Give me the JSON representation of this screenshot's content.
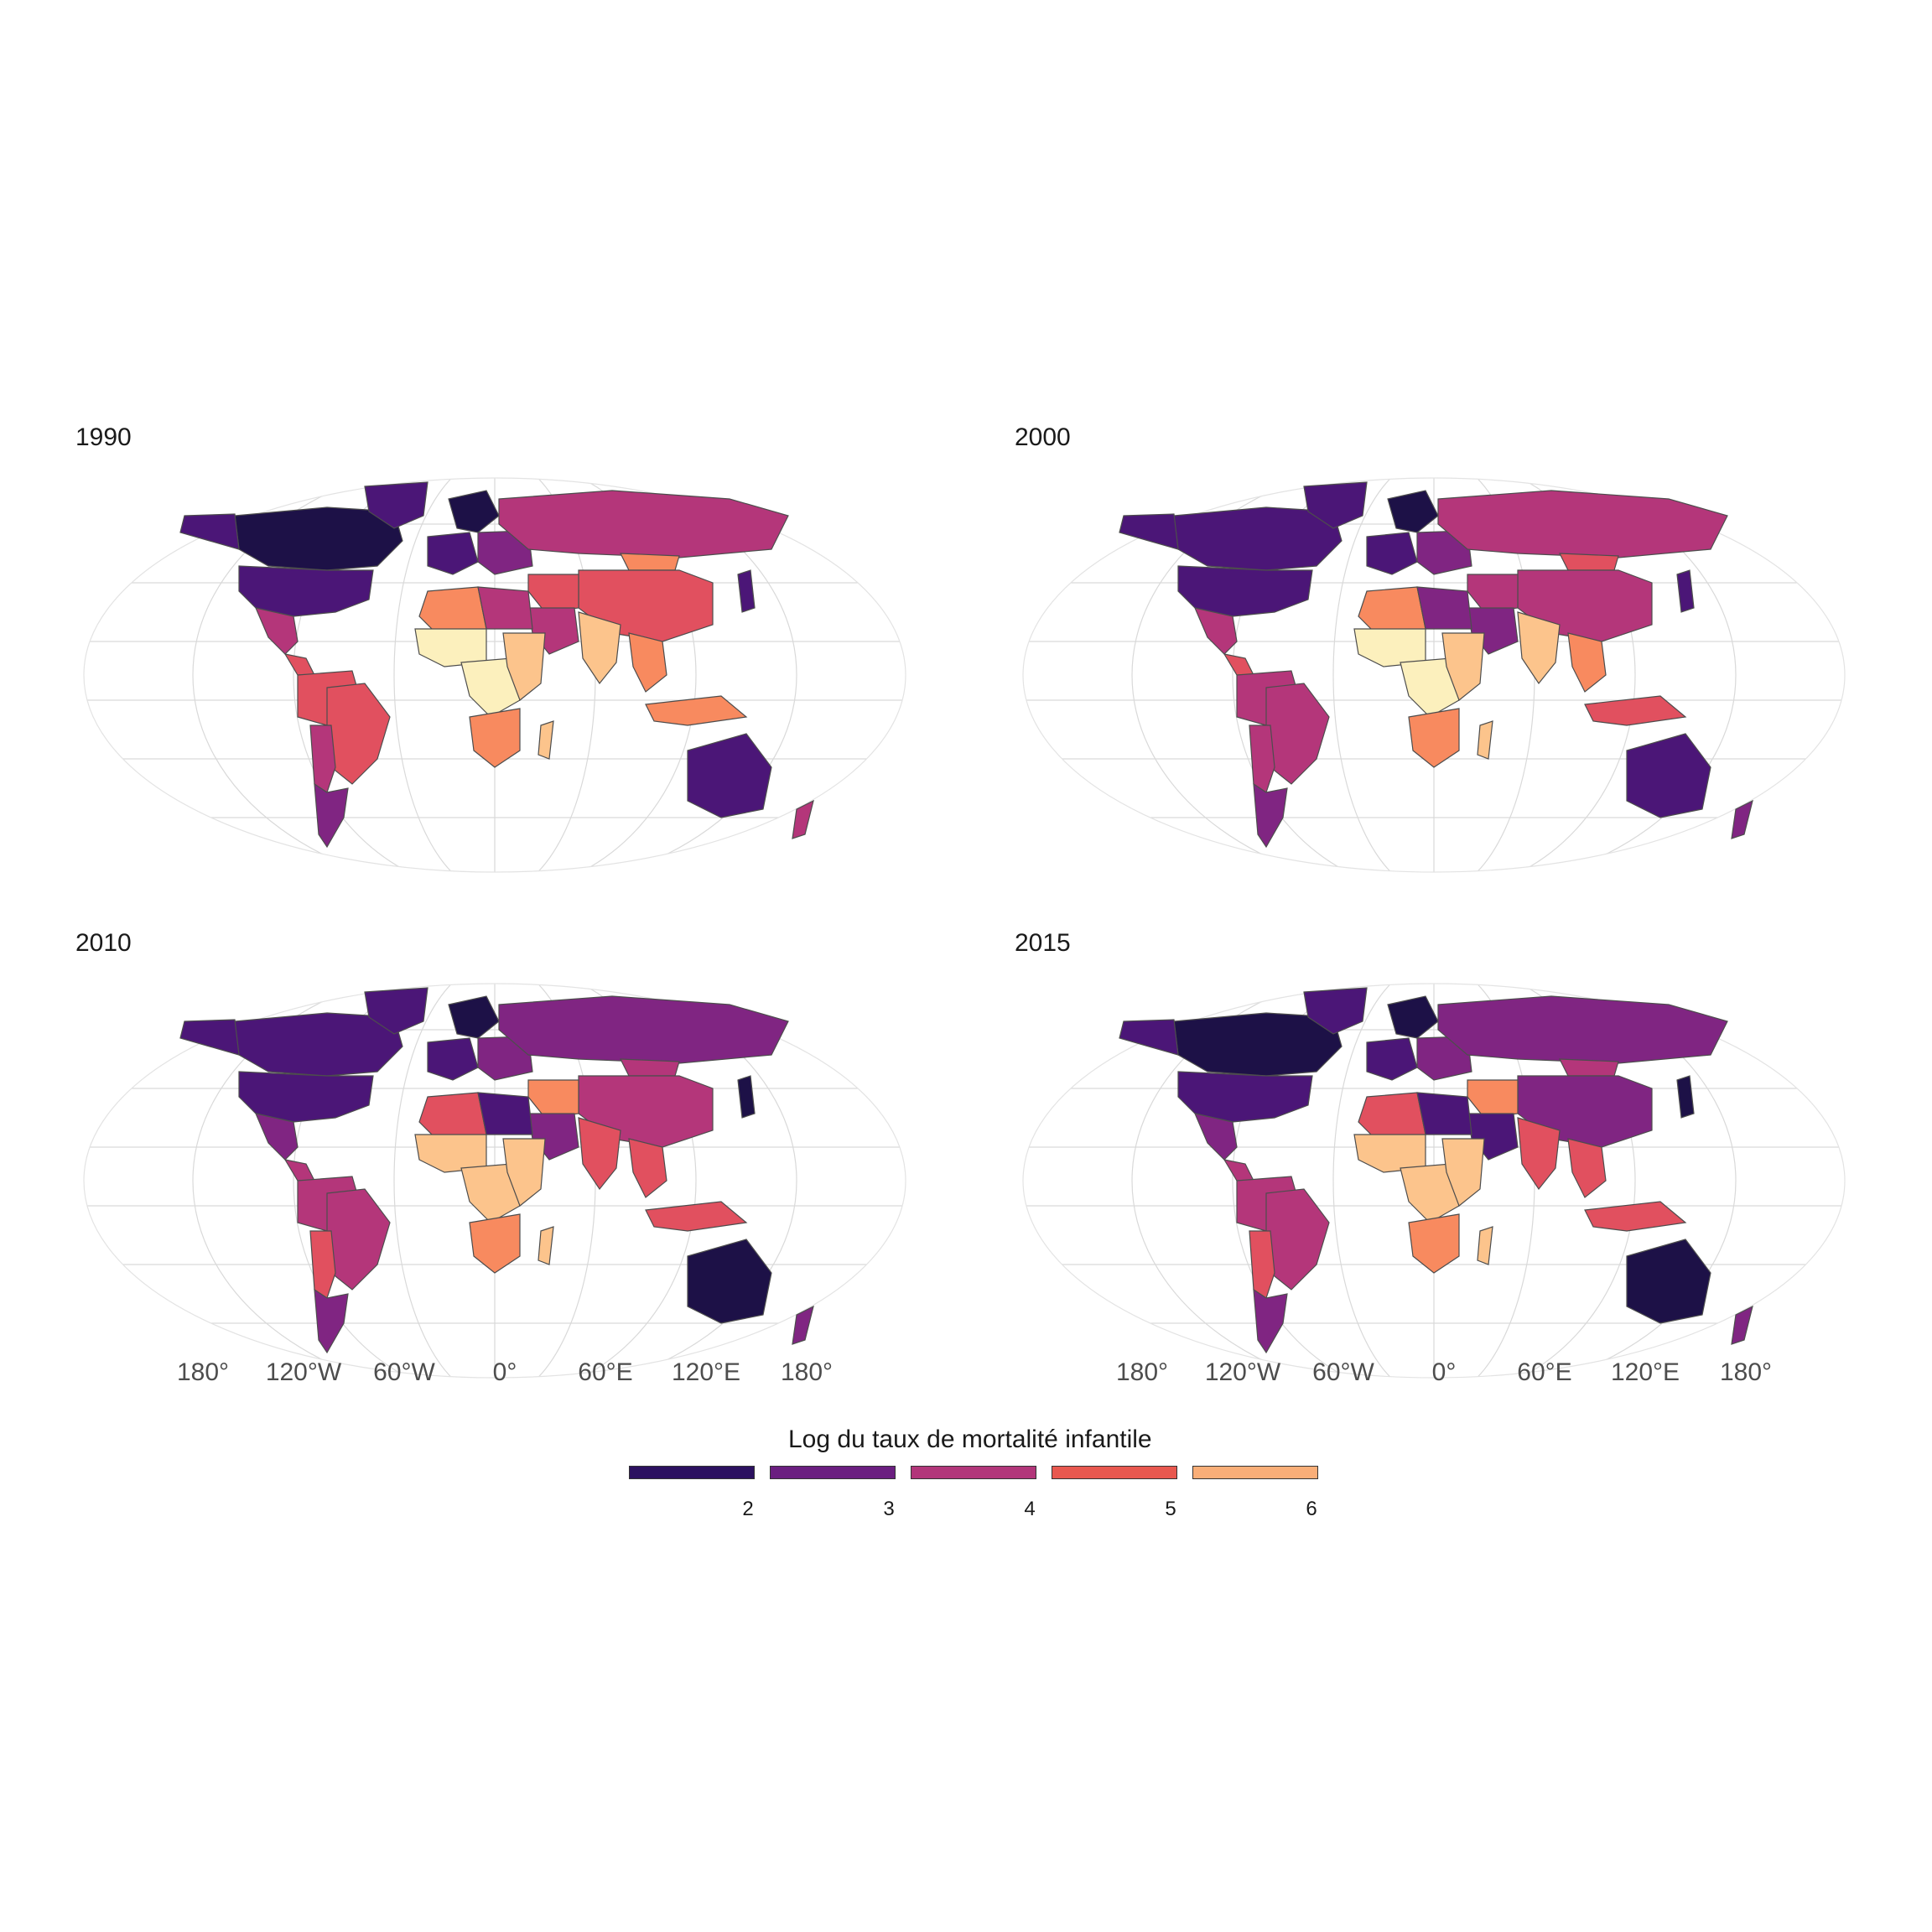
{
  "panels": [
    {
      "title": "1990"
    },
    {
      "title": "2000"
    },
    {
      "title": "2010"
    },
    {
      "title": "2015"
    }
  ],
  "x_axis_labels": [
    "180°",
    "120°W",
    "60°W",
    "0°",
    "60°E",
    "120°E",
    "180°"
  ],
  "legend": {
    "title": "Log du taux de mortalité infantile",
    "ticks": [
      "2",
      "3",
      "4",
      "5",
      "6"
    ],
    "colors": [
      "#2c1160",
      "#6b1f80",
      "#b2367a",
      "#e8584f",
      "#f9ae78"
    ]
  },
  "palette": {
    "c1": "#1d1147",
    "c2": "#4b1677",
    "c3": "#802582",
    "c4": "#b4367a",
    "c5": "#e1505f",
    "c6": "#f88a5f",
    "c7": "#fcc48c",
    "c8": "#fcf0bd"
  },
  "regions_by_year": {
    "1990": {
      "canada": "c1",
      "usa": "c2",
      "alaska": "c2",
      "greenland": "c2",
      "mexico": "c4",
      "centralam": "c5",
      "southam_n": "c5",
      "brazil": "c5",
      "southam_s": "c4",
      "patagonia": "c3",
      "europe_w": "c2",
      "europe_n": "c1",
      "europe_e": "c3",
      "russia": "c4",
      "china": "c5",
      "mongolia": "c6",
      "northafrica_w": "c6",
      "northafrica_e": "c4",
      "westafrica": "c8",
      "centralafrica": "c8",
      "eastafrica": "c7",
      "southafrica": "c6",
      "madagascar": "c7",
      "middleeast": "c5",
      "arabia": "c4",
      "india": "c7",
      "seasia": "c6",
      "indonesia": "c6",
      "australia": "c2",
      "newzealand": "c4",
      "japan": "c2"
    },
    "2000": {
      "canada": "c2",
      "usa": "c2",
      "alaska": "c2",
      "greenland": "c2",
      "mexico": "c4",
      "centralam": "c5",
      "southam_n": "c4",
      "brazil": "c4",
      "southam_s": "c4",
      "patagonia": "c3",
      "europe_w": "c2",
      "europe_n": "c1",
      "europe_e": "c3",
      "russia": "c4",
      "china": "c4",
      "mongolia": "c5",
      "northafrica_w": "c6",
      "northafrica_e": "c3",
      "westafrica": "c8",
      "centralafrica": "c8",
      "eastafrica": "c7",
      "southafrica": "c6",
      "madagascar": "c7",
      "middleeast": "c4",
      "arabia": "c3",
      "india": "c7",
      "seasia": "c6",
      "indonesia": "c5",
      "australia": "c2",
      "newzealand": "c3",
      "japan": "c2"
    },
    "2010": {
      "canada": "c2",
      "usa": "c2",
      "alaska": "c2",
      "greenland": "c2",
      "mexico": "c3",
      "centralam": "c4",
      "southam_n": "c4",
      "brazil": "c4",
      "southam_s": "c5",
      "patagonia": "c3",
      "europe_w": "c2",
      "europe_n": "c1",
      "europe_e": "c3",
      "russia": "c3",
      "china": "c4",
      "mongolia": "c4",
      "northafrica_w": "c5",
      "northafrica_e": "c2",
      "westafrica": "c7",
      "centralafrica": "c7",
      "eastafrica": "c7",
      "southafrica": "c6",
      "madagascar": "c7",
      "middleeast": "c6",
      "arabia": "c3",
      "india": "c5",
      "seasia": "c5",
      "indonesia": "c5",
      "australia": "c1",
      "newzealand": "c3",
      "japan": "c1"
    },
    "2015": {
      "canada": "c1",
      "usa": "c2",
      "alaska": "c2",
      "greenland": "c2",
      "mexico": "c3",
      "centralam": "c4",
      "southam_n": "c4",
      "brazil": "c4",
      "southam_s": "c5",
      "patagonia": "c3",
      "europe_w": "c2",
      "europe_n": "c1",
      "europe_e": "c3",
      "russia": "c3",
      "china": "c3",
      "mongolia": "c4",
      "northafrica_w": "c5",
      "northafrica_e": "c2",
      "westafrica": "c7",
      "centralafrica": "c7",
      "eastafrica": "c7",
      "southafrica": "c6",
      "madagascar": "c7",
      "middleeast": "c6",
      "arabia": "c2",
      "india": "c5",
      "seasia": "c5",
      "indonesia": "c5",
      "australia": "c1",
      "newzealand": "c3",
      "japan": "c1"
    }
  }
}
